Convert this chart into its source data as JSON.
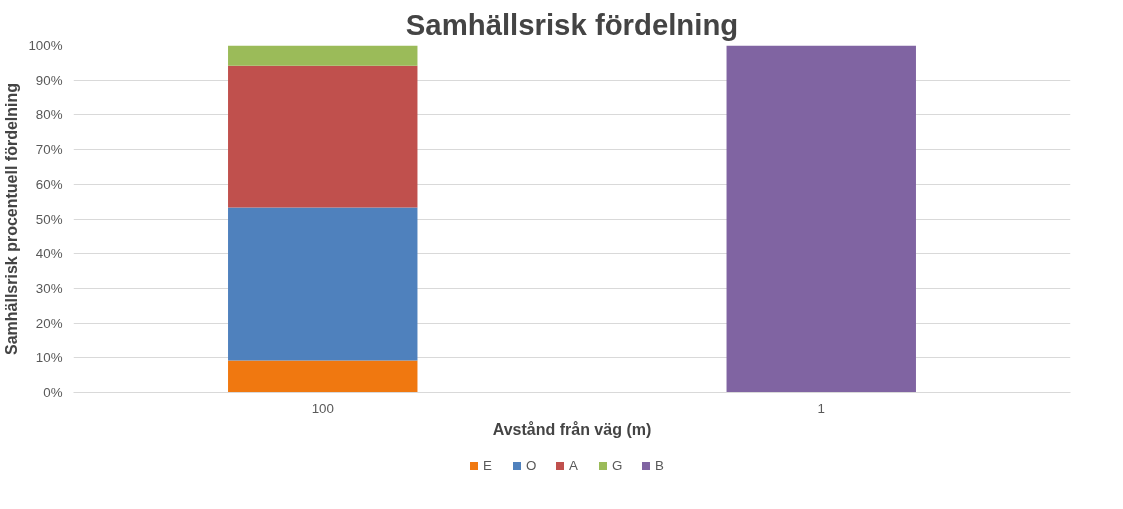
{
  "chart_data": {
    "type": "bar",
    "stacked": true,
    "title": "Samhällsrisk fördelning",
    "xlabel": "Avstånd från väg (m)",
    "ylabel": "Samhällsrisk procentuell fördelning",
    "categories": [
      "100",
      "1"
    ],
    "series": [
      {
        "name": "E",
        "color": "#f07810",
        "values": [
          9.2,
          0
        ]
      },
      {
        "name": "O",
        "color": "#4f81bd",
        "values": [
          44.1,
          0
        ]
      },
      {
        "name": "A",
        "color": "#c0504d",
        "values": [
          40.9,
          0
        ]
      },
      {
        "name": "G",
        "color": "#9bbb59",
        "values": [
          5.8,
          0
        ]
      },
      {
        "name": "B",
        "color": "#8064a2",
        "values": [
          0,
          100
        ]
      }
    ],
    "ylim": [
      0,
      100
    ],
    "yticks": [
      {
        "value": 0,
        "label": "0%"
      },
      {
        "value": 10,
        "label": "10%"
      },
      {
        "value": 20,
        "label": "20%"
      },
      {
        "value": 30,
        "label": "30%"
      },
      {
        "value": 40,
        "label": "40%"
      },
      {
        "value": 50,
        "label": "50%"
      },
      {
        "value": 60,
        "label": "60%"
      },
      {
        "value": 70,
        "label": "70%"
      },
      {
        "value": 80,
        "label": "80%"
      },
      {
        "value": 90,
        "label": "90%"
      },
      {
        "value": 100,
        "label": "100%"
      }
    ],
    "grid": "y",
    "legend": "bottom"
  }
}
